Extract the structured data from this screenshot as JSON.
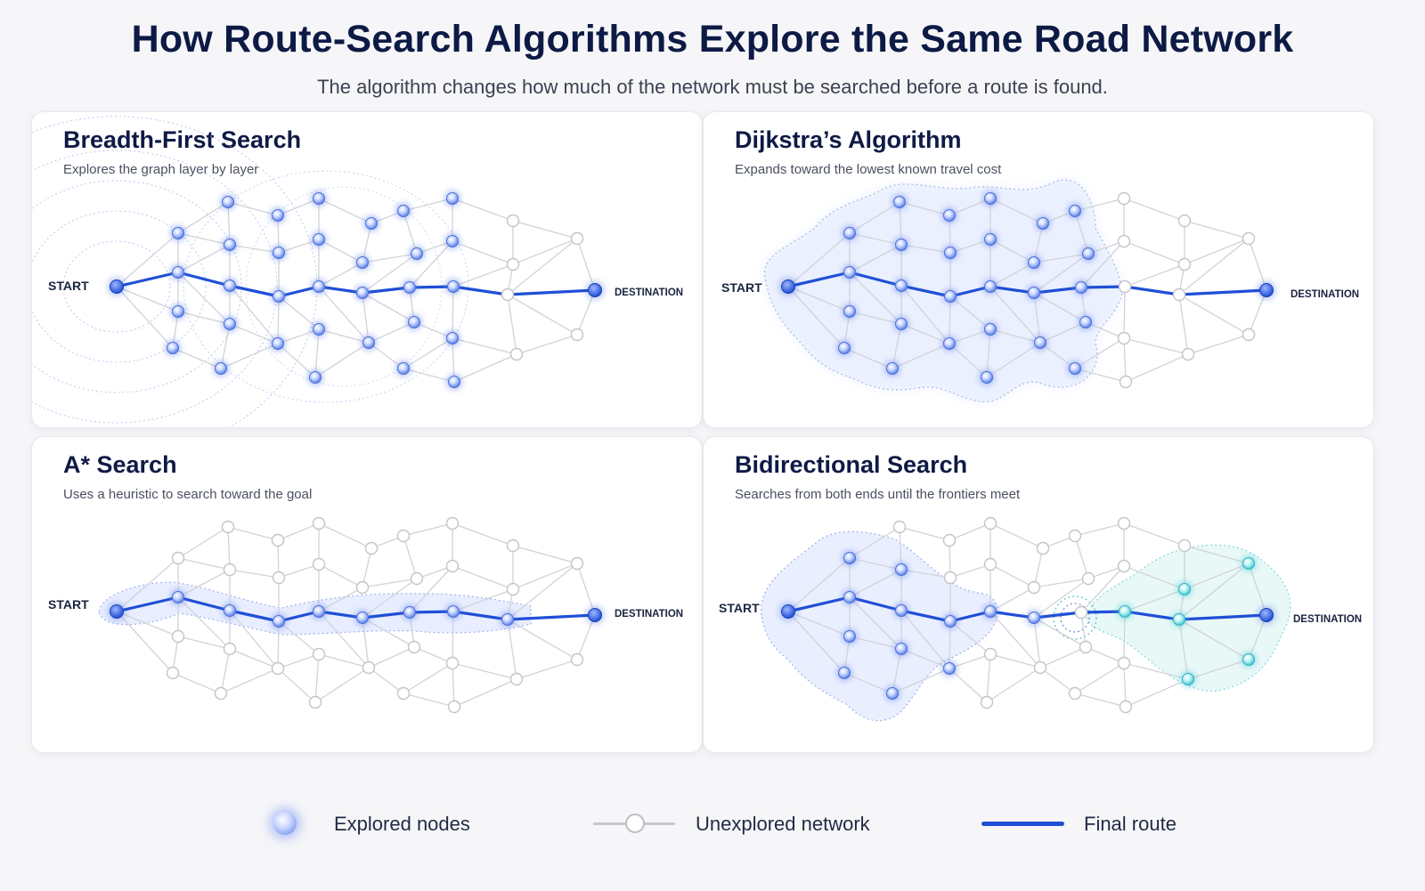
{
  "header": {
    "title": "How Route-Search Algorithms Explore the Same Road Network",
    "subtitle": "The algorithm changes how much of the network must be searched before a route is found."
  },
  "panels": [
    {
      "id": "bfs",
      "title": "Breadth-First Search",
      "description": "Explores the graph layer by layer",
      "start_label": "START",
      "destination_label": "DESTINATION"
    },
    {
      "id": "dijkstra",
      "title": "Dijkstra’s Algorithm",
      "description": "Expands toward the lowest known travel cost",
      "start_label": "START",
      "destination_label": "DESTINATION"
    },
    {
      "id": "astar",
      "title": "A* Search",
      "description": "Uses a heuristic to search toward the goal",
      "start_label": "START",
      "destination_label": "DESTINATION"
    },
    {
      "id": "bidirectional",
      "title": "Bidirectional Search",
      "description": "Searches from both ends until the frontiers meet",
      "start_label": "START",
      "destination_label": "DESTINATION"
    }
  ],
  "legend": {
    "explored": "Explored nodes",
    "unexplored": "Unexplored network",
    "route": "Final route"
  },
  "colors": {
    "route": "#1f4fd6",
    "explored": "#5b7fe8",
    "explored_reverse": "#3cc9d6",
    "unexplored": "#c8c8cc",
    "title": "#0d1a45"
  }
}
